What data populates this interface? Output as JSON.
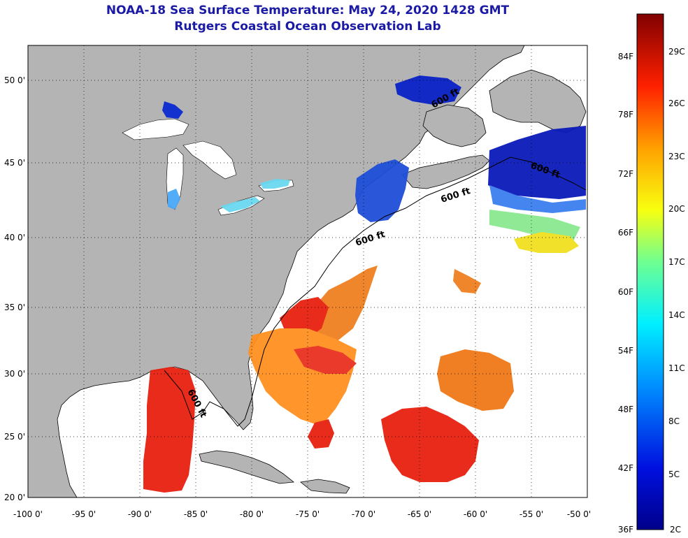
{
  "title": {
    "line1": "NOAA-18 Sea Surface Temperature:  May 24, 2020 1428 GMT",
    "line2": "Rutgers Coastal Ocean Observation Lab"
  },
  "axes": {
    "longitude_labels": [
      "-100 0'",
      "-95 0'",
      "-90 0'",
      "-85 0'",
      "-80 0'",
      "-75 0'",
      "-70 0'",
      "-65 0'",
      "-60 0'",
      "-55 0'",
      "-50 0'"
    ],
    "latitude_labels": [
      "50 0'",
      "45 0'",
      "40 0'",
      "35 0'",
      "30 0'",
      "25 0'",
      "20 0'"
    ]
  },
  "contour_label": "600 ft",
  "colorbar": {
    "fahrenheit_labels": [
      "84F",
      "78F",
      "72F",
      "66F",
      "60F",
      "54F",
      "48F",
      "42F",
      "36F"
    ],
    "celsius_labels": [
      "29C",
      "26C",
      "23C",
      "20C",
      "17C",
      "14C",
      "11C",
      "8C",
      "5C",
      "2C"
    ]
  },
  "colors": {
    "title": "#1a1aa6",
    "land": "#b4b4b4",
    "ocean_no_data": "#ffffff",
    "cold": "#0a1ab4",
    "warm": "#e02010"
  }
}
